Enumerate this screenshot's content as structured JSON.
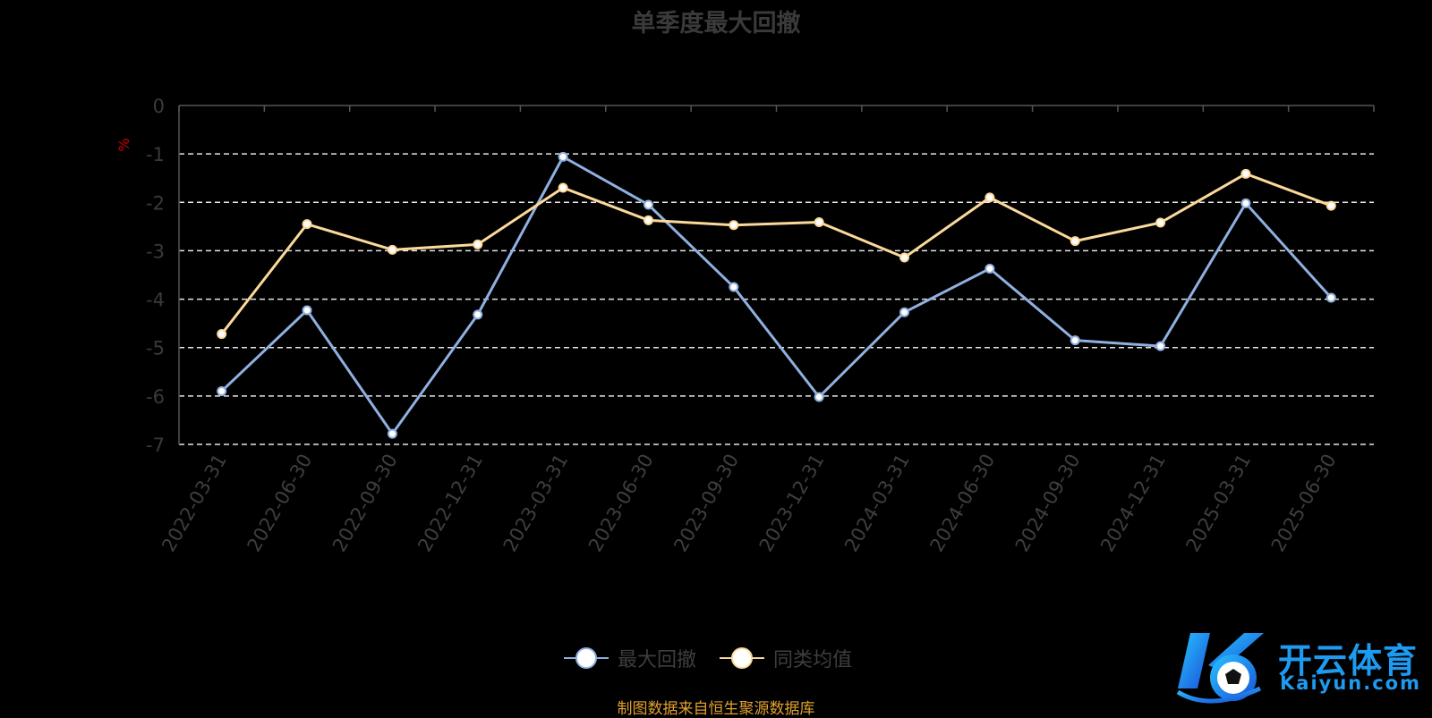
{
  "chart_data": {
    "type": "line",
    "title": "单季度最大回撤",
    "ylabel": "%",
    "xlabel": "",
    "ylim": [
      -7,
      0
    ],
    "yticks": [
      0,
      -1,
      -2,
      -3,
      -4,
      -5,
      -6,
      -7
    ],
    "categories": [
      "2022-03-31",
      "2022-06-30",
      "2022-09-30",
      "2022-12-31",
      "2023-03-31",
      "2023-06-30",
      "2023-09-30",
      "2023-12-31",
      "2024-03-31",
      "2024-06-30",
      "2024-09-30",
      "2024-12-31",
      "2025-03-31",
      "2025-06-30"
    ],
    "series": [
      {
        "name": "最大回撤",
        "color": "#8fb0e0",
        "values": [
          -5.9,
          -4.23,
          -6.78,
          -4.32,
          -1.06,
          -2.05,
          -3.75,
          -6.02,
          -4.27,
          -3.37,
          -4.85,
          -4.97,
          -2.02,
          -3.97
        ]
      },
      {
        "name": "同类均值",
        "color": "#fbd99a",
        "values": [
          -4.72,
          -2.45,
          -2.98,
          -2.87,
          -1.7,
          -2.37,
          -2.47,
          -2.41,
          -3.14,
          -1.9,
          -2.8,
          -2.42,
          -1.41,
          -2.07
        ]
      }
    ],
    "grid": true,
    "legend": "bottom-center"
  },
  "footer": {
    "source": "制图数据来自恒生聚源数据库"
  },
  "watermark": {
    "logo_icon": "kaiyun-logo-icon",
    "cn": "开云体育",
    "en": "Kaiyun.com"
  }
}
